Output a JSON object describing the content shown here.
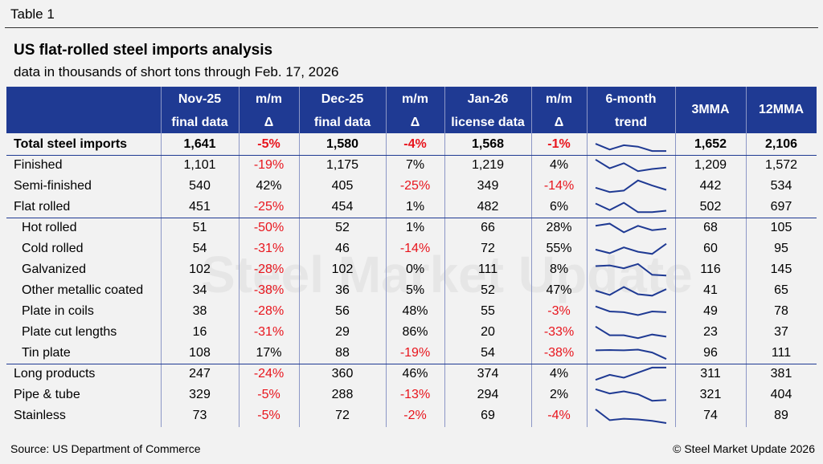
{
  "table_label": "Table 1",
  "title": "US flat-rolled steel imports analysis",
  "subtitle": "data in thousands of short tons through Feb. 17, 2026",
  "watermark": "Steel Market Update",
  "footer": {
    "source": "Source: US Department of Commerce",
    "copyright": "© Steel Market Update 2026"
  },
  "colors": {
    "header_bg": "#1f3a93",
    "negative": "#e8141c",
    "spark": "#1f3a93"
  },
  "chart_data": {
    "type": "table",
    "columns": [
      {
        "line1": "",
        "line2": ""
      },
      {
        "line1": "Nov-25",
        "line2": "final data"
      },
      {
        "line1": "m/m",
        "line2": "Δ"
      },
      {
        "line1": "Dec-25",
        "line2": "final data"
      },
      {
        "line1": "m/m",
        "line2": "Δ"
      },
      {
        "line1": "Jan-26",
        "line2": "license data"
      },
      {
        "line1": "m/m",
        "line2": "Δ"
      },
      {
        "line1": "6-month",
        "line2": "trend"
      },
      {
        "line1": "3MMA",
        "line2": ""
      },
      {
        "line1": "12MMA",
        "line2": ""
      }
    ],
    "rows": [
      {
        "label": "Total steel imports",
        "nov": "1,641",
        "nov_mm": "-5%",
        "dec": "1,580",
        "dec_mm": "-4%",
        "jan": "1,568",
        "jan_mm": "-1%",
        "mma3": "1,652",
        "mma12": "2,106",
        "bold": true,
        "indent": false,
        "trend": [
          0.55,
          0.15,
          0.45,
          0.35,
          0.05,
          0.05
        ]
      },
      {
        "label": "Finished",
        "nov": "1,101",
        "nov_mm": "-19%",
        "dec": "1,175",
        "dec_mm": "7%",
        "jan": "1,219",
        "jan_mm": "4%",
        "mma3": "1,209",
        "mma12": "1,572",
        "bold": false,
        "indent": false,
        "trend": [
          0.9,
          0.3,
          0.65,
          0.1,
          0.25,
          0.35
        ]
      },
      {
        "label": "Semi-finished",
        "nov": "540",
        "nov_mm": "42%",
        "dec": "405",
        "dec_mm": "-25%",
        "jan": "349",
        "jan_mm": "-14%",
        "mma3": "442",
        "mma12": "534",
        "bold": false,
        "indent": false,
        "trend": [
          0.4,
          0.1,
          0.2,
          0.9,
          0.55,
          0.25
        ]
      },
      {
        "label": "Flat rolled",
        "nov": "451",
        "nov_mm": "-25%",
        "dec": "454",
        "dec_mm": "1%",
        "jan": "482",
        "jan_mm": "6%",
        "mma3": "502",
        "mma12": "697",
        "bold": false,
        "indent": false,
        "trend": [
          0.75,
          0.3,
          0.8,
          0.15,
          0.15,
          0.25
        ]
      },
      {
        "label": "Hot rolled",
        "nov": "51",
        "nov_mm": "-50%",
        "dec": "52",
        "dec_mm": "1%",
        "jan": "66",
        "jan_mm": "28%",
        "mma3": "68",
        "mma12": "105",
        "bold": false,
        "indent": true,
        "trend": [
          0.65,
          0.8,
          0.2,
          0.65,
          0.35,
          0.45
        ]
      },
      {
        "label": "Cold rolled",
        "nov": "54",
        "nov_mm": "-31%",
        "dec": "46",
        "dec_mm": "-14%",
        "jan": "72",
        "jan_mm": "55%",
        "mma3": "60",
        "mma12": "95",
        "bold": false,
        "indent": true,
        "trend": [
          0.45,
          0.2,
          0.6,
          0.3,
          0.15,
          0.85
        ]
      },
      {
        "label": "Galvanized",
        "nov": "102",
        "nov_mm": "-28%",
        "dec": "102",
        "dec_mm": "0%",
        "jan": "111",
        "jan_mm": "8%",
        "mma3": "116",
        "mma12": "145",
        "bold": false,
        "indent": true,
        "trend": [
          0.75,
          0.8,
          0.6,
          0.9,
          0.15,
          0.1
        ]
      },
      {
        "label": "Other metallic coated",
        "nov": "34",
        "nov_mm": "-38%",
        "dec": "36",
        "dec_mm": "5%",
        "jan": "52",
        "jan_mm": "47%",
        "mma3": "41",
        "mma12": "65",
        "bold": false,
        "indent": true,
        "trend": [
          0.5,
          0.2,
          0.75,
          0.25,
          0.15,
          0.6
        ]
      },
      {
        "label": "Plate in coils",
        "nov": "38",
        "nov_mm": "-28%",
        "dec": "56",
        "dec_mm": "48%",
        "jan": "55",
        "jan_mm": "-3%",
        "mma3": "49",
        "mma12": "78",
        "bold": false,
        "indent": true,
        "trend": [
          0.85,
          0.5,
          0.45,
          0.25,
          0.5,
          0.45
        ]
      },
      {
        "label": "Plate cut lengths",
        "nov": "16",
        "nov_mm": "-31%",
        "dec": "29",
        "dec_mm": "86%",
        "jan": "20",
        "jan_mm": "-33%",
        "mma3": "23",
        "mma12": "37",
        "bold": false,
        "indent": true,
        "trend": [
          0.9,
          0.3,
          0.3,
          0.1,
          0.35,
          0.2
        ]
      },
      {
        "label": "Tin plate",
        "nov": "108",
        "nov_mm": "17%",
        "dec": "88",
        "dec_mm": "-19%",
        "jan": "54",
        "jan_mm": "-38%",
        "mma3": "96",
        "mma12": "111",
        "bold": false,
        "indent": true,
        "trend": [
          0.7,
          0.72,
          0.7,
          0.75,
          0.55,
          0.1
        ]
      },
      {
        "label": "Long products",
        "nov": "247",
        "nov_mm": "-24%",
        "dec": "360",
        "dec_mm": "46%",
        "jan": "374",
        "jan_mm": "4%",
        "mma3": "311",
        "mma12": "381",
        "bold": false,
        "indent": false,
        "trend": [
          0.1,
          0.45,
          0.25,
          0.6,
          0.95,
          0.95
        ]
      },
      {
        "label": "Pipe & tube",
        "nov": "329",
        "nov_mm": "-5%",
        "dec": "288",
        "dec_mm": "-13%",
        "jan": "294",
        "jan_mm": "2%",
        "mma3": "321",
        "mma12": "404",
        "bold": false,
        "indent": false,
        "trend": [
          0.9,
          0.6,
          0.75,
          0.55,
          0.1,
          0.15
        ]
      },
      {
        "label": "Stainless",
        "nov": "73",
        "nov_mm": "-5%",
        "dec": "72",
        "dec_mm": "-2%",
        "jan": "69",
        "jan_mm": "-4%",
        "mma3": "74",
        "mma12": "89",
        "bold": false,
        "indent": false,
        "trend": [
          0.95,
          0.2,
          0.3,
          0.25,
          0.15,
          0.0
        ]
      }
    ]
  }
}
